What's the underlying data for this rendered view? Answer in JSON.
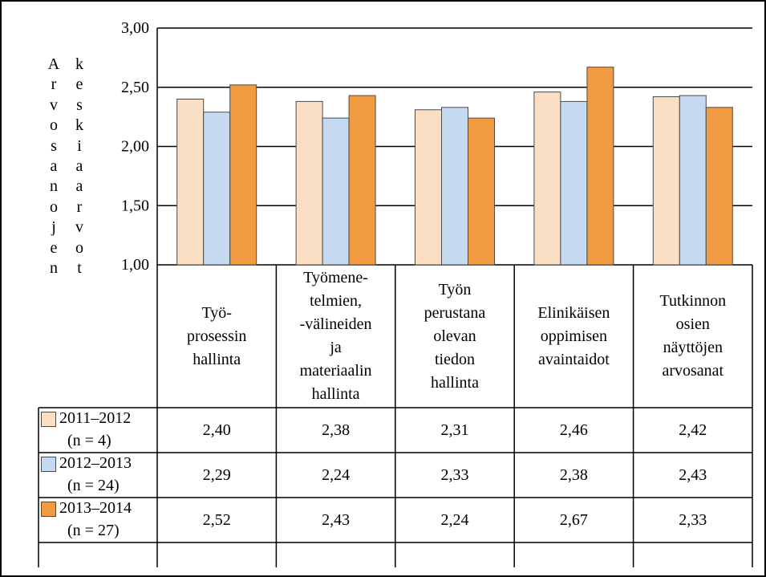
{
  "chart_data": {
    "type": "bar",
    "ylabel": "Arvosanojen keskiaarvot",
    "ylim": [
      1.0,
      3.0
    ],
    "ytick_labels": [
      "3,00",
      "2,50",
      "2,00",
      "1,50",
      "1,00"
    ],
    "grid": true,
    "categories": [
      "Työ-prosessin hallinta",
      "Työmene-telmien, -välineiden ja materiaalin hallinta",
      "Työn perustana olevan tiedon hallinta",
      "Elinikäisen oppimisen avaintaidot",
      "Tutkinnon osien näyttöjen arvosanat"
    ],
    "category_lines": [
      [
        "Työ-",
        "prosessin",
        "hallinta"
      ],
      [
        "Työmene-",
        "telmien,",
        "-välineiden",
        "ja",
        "materiaalin",
        "hallinta"
      ],
      [
        "Työn",
        "perustana",
        "olevan",
        "tiedon",
        "hallinta"
      ],
      [
        "Elinikäisen",
        "oppimisen",
        "avaintaidot"
      ],
      [
        "Tutkinnon",
        "osien",
        "näyttöjen",
        "arvosanat"
      ]
    ],
    "series": [
      {
        "name": "2011–2012",
        "n_label": "(n = 4)",
        "color": "#FBDFC5",
        "values": [
          2.4,
          2.38,
          2.31,
          2.46,
          2.42
        ],
        "value_labels": [
          "2,40",
          "2,38",
          "2,31",
          "2,46",
          "2,42"
        ]
      },
      {
        "name": "2012–2013",
        "n_label": "(n = 24)",
        "color": "#C5D9F1",
        "values": [
          2.29,
          2.24,
          2.33,
          2.38,
          2.43
        ],
        "value_labels": [
          "2,29",
          "2,24",
          "2,33",
          "2,38",
          "2,43"
        ]
      },
      {
        "name": "2013–2014",
        "n_label": "(n = 27)",
        "color": "#F09A42",
        "values": [
          2.52,
          2.43,
          2.24,
          2.67,
          2.33
        ],
        "value_labels": [
          "2,52",
          "2,43",
          "2,24",
          "2,67",
          "2,33"
        ]
      }
    ]
  }
}
